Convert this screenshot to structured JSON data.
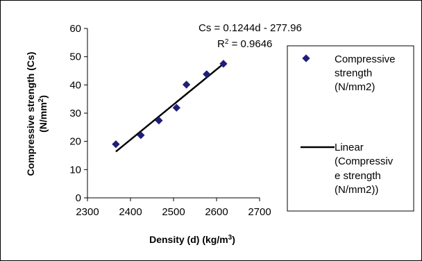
{
  "chart_data": {
    "type": "scatter",
    "title": "",
    "xlabel": "Density (d) (kg/m",
    "xlabel_sup": "3",
    "xlabel_end": ")",
    "ylabel_line1": "Compressive strength (Cs)",
    "ylabel_line2": "(N/mm",
    "ylabel_sup": "2",
    "ylabel_end": ")",
    "xlim": [
      2300,
      2700
    ],
    "ylim": [
      0,
      60
    ],
    "x_ticks": [
      "2300",
      "2400",
      "2500",
      "2600",
      "2700"
    ],
    "y_ticks": [
      "0",
      "10",
      "20",
      "30",
      "40",
      "50",
      "60"
    ],
    "grid": false,
    "series": [
      {
        "name": "Compressive strength (N/mm2)",
        "name_lines": [
          "Compressive",
          "strength",
          "(N/mm2)"
        ],
        "x": [
          2366,
          2424,
          2466,
          2507,
          2530,
          2577,
          2616
        ],
        "y": [
          19.0,
          22.2,
          27.4,
          31.9,
          40.1,
          43.8,
          47.5
        ],
        "color": "#1f1f7a"
      }
    ],
    "trendline": {
      "name_lines": [
        "Linear",
        "(Compressiv",
        "e strength",
        "(N/mm2))"
      ],
      "slope": 0.1244,
      "intercept": -277.96,
      "x_start": 2366,
      "x_end": 2616,
      "color": "#000000"
    },
    "equation_text": "Cs = 0.1244d - 277.96",
    "r2_prefix": "R",
    "r2_sup": "2",
    "r2_value": " = 0.9646",
    "legend_position": "right"
  }
}
